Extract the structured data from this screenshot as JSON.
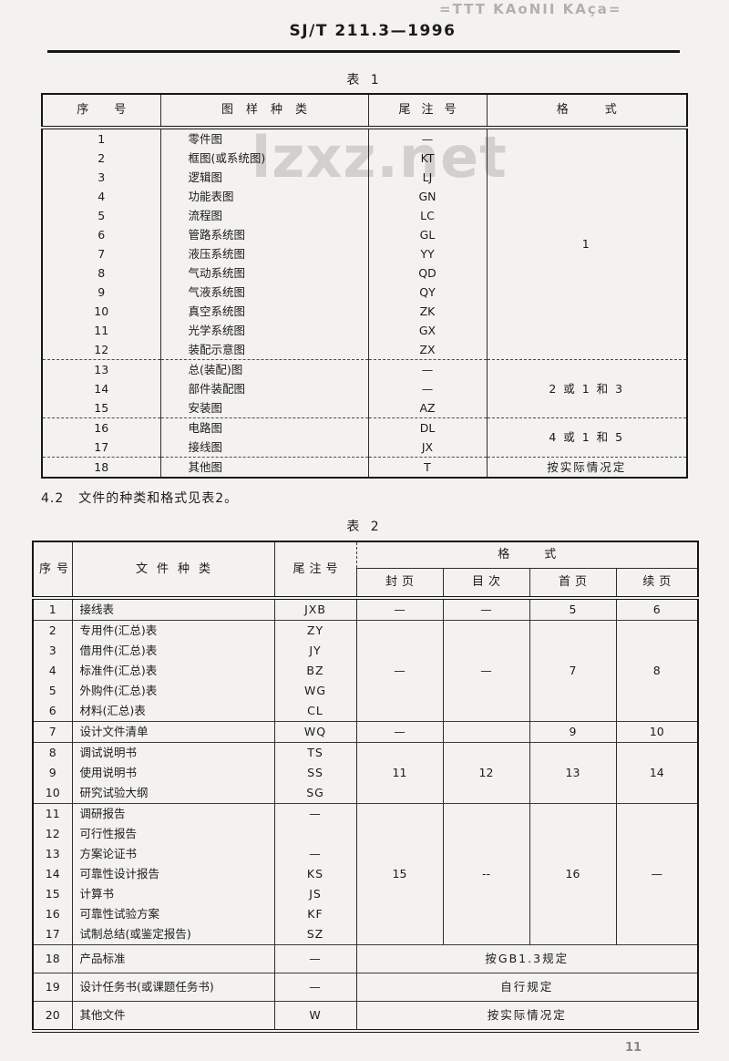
{
  "page": {
    "watermark_top": "=TTT KAoNII KAça=",
    "standard_number": "SJ/T 211.3—1996",
    "watermark_site": "lzxz.net",
    "page_number": "11"
  },
  "clause": {
    "number": "4.2",
    "text": "文件的种类和格式见表2。"
  },
  "table1": {
    "title": "表 1",
    "headers": {
      "no": "序号",
      "type": "图样种类",
      "code": "尾注号",
      "format": "格式"
    },
    "groups": [
      {
        "format": "1",
        "rows": [
          {
            "no": "1",
            "type": "零件图",
            "code": "—"
          },
          {
            "no": "2",
            "type": "框图(或系统图)",
            "code": "KT"
          },
          {
            "no": "3",
            "type": "逻辑图",
            "code": "LJ"
          },
          {
            "no": "4",
            "type": "功能表图",
            "code": "GN"
          },
          {
            "no": "5",
            "type": "流程图",
            "code": "LC"
          },
          {
            "no": "6",
            "type": "管路系统图",
            "code": "GL"
          },
          {
            "no": "7",
            "type": "液压系统图",
            "code": "YY"
          },
          {
            "no": "8",
            "type": "气动系统图",
            "code": "QD"
          },
          {
            "no": "9",
            "type": "气液系统图",
            "code": "QY"
          },
          {
            "no": "10",
            "type": "真空系统图",
            "code": "ZK"
          },
          {
            "no": "11",
            "type": "光学系统图",
            "code": "GX"
          },
          {
            "no": "12",
            "type": "装配示意图",
            "code": "ZX"
          }
        ]
      },
      {
        "format": "2 或 1 和 3",
        "rows": [
          {
            "no": "13",
            "type": "总(装配)图",
            "code": "—"
          },
          {
            "no": "14",
            "type": "部件装配图",
            "code": "—"
          },
          {
            "no": "15",
            "type": "安装图",
            "code": "AZ"
          }
        ]
      },
      {
        "format": "4 或 1 和 5",
        "rows": [
          {
            "no": "16",
            "type": "电路图",
            "code": "DL"
          },
          {
            "no": "17",
            "type": "接线图",
            "code": "JX"
          }
        ]
      },
      {
        "format": "按实际情况定",
        "rows": [
          {
            "no": "18",
            "type": "其他图",
            "code": "T"
          }
        ]
      }
    ]
  },
  "table2": {
    "title": "表 2",
    "headers": {
      "no": "序号",
      "type": "文件种类",
      "code": "尾注号",
      "format": "格式",
      "sub": [
        "封页",
        "目次",
        "首页",
        "续页"
      ]
    },
    "groups": [
      {
        "formats": [
          "—",
          "—",
          "5",
          "6"
        ],
        "rows": [
          {
            "no": "1",
            "type": "接线表",
            "code": "JXB"
          }
        ]
      },
      {
        "formats": [
          "—",
          "—",
          "7",
          "8"
        ],
        "rows": [
          {
            "no": "2",
            "type": "专用件(汇总)表",
            "code": "ZY"
          },
          {
            "no": "3",
            "type": "借用件(汇总)表",
            "code": "JY"
          },
          {
            "no": "4",
            "type": "标准件(汇总)表",
            "code": "BZ"
          },
          {
            "no": "5",
            "type": "外购件(汇总)表",
            "code": "WG"
          },
          {
            "no": "6",
            "type": "材料(汇总)表",
            "code": "CL"
          }
        ]
      },
      {
        "formats": [
          "—",
          "",
          "9",
          "10"
        ],
        "rows": [
          {
            "no": "7",
            "type": "设计文件清单",
            "code": "WQ"
          }
        ]
      },
      {
        "formats": [
          "11",
          "12",
          "13",
          "14"
        ],
        "rows": [
          {
            "no": "8",
            "type": "调试说明书",
            "code": "TS"
          },
          {
            "no": "9",
            "type": "使用说明书",
            "code": "SS"
          },
          {
            "no": "10",
            "type": "研究试验大纲",
            "code": "SG"
          }
        ]
      },
      {
        "formats": [
          "15",
          "--",
          "16",
          "—"
        ],
        "rows": [
          {
            "no": "11",
            "type": "调研报告",
            "code": "—"
          },
          {
            "no": "12",
            "type": "可行性报告",
            "code": ""
          },
          {
            "no": "13",
            "type": "方案论证书",
            "code": "—"
          },
          {
            "no": "14",
            "type": "可靠性设计报告",
            "code": "KS"
          },
          {
            "no": "15",
            "type": "计算书",
            "code": "JS"
          },
          {
            "no": "16",
            "type": "可靠性试验方案",
            "code": "KF"
          },
          {
            "no": "17",
            "type": "试制总结(或鉴定报告)",
            "code": "SZ"
          }
        ]
      },
      {
        "format_span": "按GB1.3规定",
        "tall": true,
        "rows": [
          {
            "no": "18",
            "type": "产品标准",
            "code": "—"
          }
        ]
      },
      {
        "format_span": "自行规定",
        "tall": true,
        "rows": [
          {
            "no": "19",
            "type": "设计任务书(或课题任务书)",
            "code": "—"
          }
        ]
      },
      {
        "format_span": "按实际情况定",
        "tall": true,
        "rows": [
          {
            "no": "20",
            "type": "其他文件",
            "code": "W"
          }
        ]
      }
    ]
  }
}
